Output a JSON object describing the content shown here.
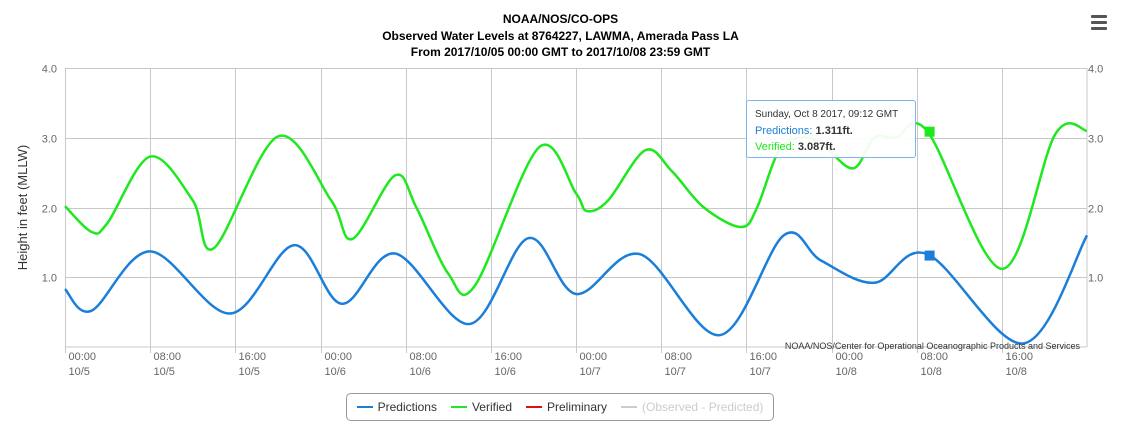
{
  "title": {
    "line1": "NOAA/NOS/CO-OPS",
    "line2": "Observed Water Levels at 8764227, LAWMA, Amerada Pass LA",
    "line3": "From 2017/10/05 00:00 GMT to 2017/10/08 23:59 GMT"
  },
  "colors": {
    "predictions": "#1a7fd8",
    "verified": "#1ee81e",
    "preliminary": "#e01010",
    "observed_minus_predicted": "#cccccc",
    "grid": "#c8c8c8"
  },
  "credit": "NOAA/NOS/Center for Operational Oceanographic Products and Services",
  "tooltip": {
    "header": "Sunday, Oct 8 2017, 09:12 GMT",
    "pred_label": "Predictions:",
    "pred_value": "1.311ft.",
    "ver_label": "Verified:",
    "ver_value": "3.087ft."
  },
  "legend": [
    {
      "label": "Predictions",
      "color": "#1a7fd8",
      "visible": true
    },
    {
      "label": "Verified",
      "color": "#1ee81e",
      "visible": true
    },
    {
      "label": "Preliminary",
      "color": "#e01010",
      "visible": true
    },
    {
      "label": "(Observed - Predicted)",
      "color": "#cccccc",
      "visible": false
    }
  ],
  "chart_data": {
    "type": "line",
    "ylabel": "Height in feet (MLLW)",
    "ylim": [
      0.0,
      4.0
    ],
    "yticks": [
      {
        "value": 1.0,
        "label": "1.0"
      },
      {
        "value": 2.0,
        "label": "2.0"
      },
      {
        "value": 3.0,
        "label": "3.0"
      },
      {
        "value": 4.0,
        "label": "4.0"
      }
    ],
    "xlim": [
      "2017-10-05 00:00",
      "2017-10-08 23:59"
    ],
    "xticks": [
      {
        "time": "2017-10-05 00:00",
        "label1": "00:00",
        "label2": "10/5"
      },
      {
        "time": "2017-10-05 08:00",
        "label1": "08:00",
        "label2": "10/5"
      },
      {
        "time": "2017-10-05 16:00",
        "label1": "16:00",
        "label2": "10/5"
      },
      {
        "time": "2017-10-06 00:00",
        "label1": "00:00",
        "label2": "10/6"
      },
      {
        "time": "2017-10-06 08:00",
        "label1": "08:00",
        "label2": "10/6"
      },
      {
        "time": "2017-10-06 16:00",
        "label1": "16:00",
        "label2": "10/6"
      },
      {
        "time": "2017-10-07 00:00",
        "label1": "00:00",
        "label2": "10/7"
      },
      {
        "time": "2017-10-07 08:00",
        "label1": "08:00",
        "label2": "10/7"
      },
      {
        "time": "2017-10-07 16:00",
        "label1": "16:00",
        "label2": "10/7"
      },
      {
        "time": "2017-10-08 00:00",
        "label1": "00:00",
        "label2": "10/8"
      },
      {
        "time": "2017-10-08 08:00",
        "label1": "08:00",
        "label2": "10/8"
      },
      {
        "time": "2017-10-08 16:00",
        "label1": "16:00",
        "label2": "10/8"
      }
    ],
    "series": [
      {
        "name": "Predictions",
        "color": "#1a7fd8",
        "x": [
          "2017-10-05 00:00",
          "2017-10-05 02:30",
          "2017-10-05 08:00",
          "2017-10-05 15:30",
          "2017-10-05 21:30",
          "2017-10-06 02:00",
          "2017-10-06 07:00",
          "2017-10-06 14:00",
          "2017-10-06 19:30",
          "2017-10-07 00:00",
          "2017-10-07 06:00",
          "2017-10-07 13:30",
          "2017-10-07 19:30",
          "2017-10-07 23:00",
          "2017-10-08 04:00",
          "2017-10-08 09:00",
          "2017-10-08 18:00",
          "2017-10-08 23:59"
        ],
        "y": [
          0.83,
          0.52,
          1.37,
          0.48,
          1.46,
          0.62,
          1.34,
          0.33,
          1.56,
          0.76,
          1.33,
          0.17,
          1.6,
          1.24,
          0.92,
          1.33,
          0.05,
          1.6
        ]
      },
      {
        "name": "Verified",
        "color": "#1ee81e",
        "x": [
          "2017-10-05 00:00",
          "2017-10-05 02:30",
          "2017-10-05 04:00",
          "2017-10-05 08:00",
          "2017-10-05 12:00",
          "2017-10-05 14:00",
          "2017-10-05 20:00",
          "2017-10-06 01:00",
          "2017-10-06 03:00",
          "2017-10-06 07:00",
          "2017-10-06 09:00",
          "2017-10-06 12:00",
          "2017-10-06 14:30",
          "2017-10-06 20:30",
          "2017-10-07 00:00",
          "2017-10-07 01:00",
          "2017-10-07 03:00",
          "2017-10-07 06:30",
          "2017-10-07 09:00",
          "2017-10-07 12:00",
          "2017-10-07 15:30",
          "2017-10-07 17:00",
          "2017-10-07 19:00",
          "2017-10-07 21:00",
          "2017-10-07 23:00",
          "2017-10-08 02:00",
          "2017-10-08 04:00",
          "2017-10-08 06:00",
          "2017-10-08 09:00",
          "2017-10-08 16:00",
          "2017-10-08 21:00",
          "2017-10-08 23:59"
        ],
        "y": [
          2.02,
          1.65,
          1.78,
          2.73,
          2.1,
          1.42,
          3.02,
          2.1,
          1.55,
          2.46,
          2.0,
          1.05,
          0.88,
          2.86,
          2.2,
          1.95,
          2.1,
          2.82,
          2.52,
          2.0,
          1.72,
          2.0,
          2.8,
          3.0,
          2.92,
          2.56,
          3.0,
          3.0,
          3.09,
          1.12,
          3.05,
          3.1
        ]
      }
    ],
    "markers": [
      {
        "series": "Predictions",
        "x": "2017-10-08 09:12",
        "y": 1.311
      },
      {
        "series": "Verified",
        "x": "2017-10-08 09:12",
        "y": 3.087
      }
    ]
  }
}
